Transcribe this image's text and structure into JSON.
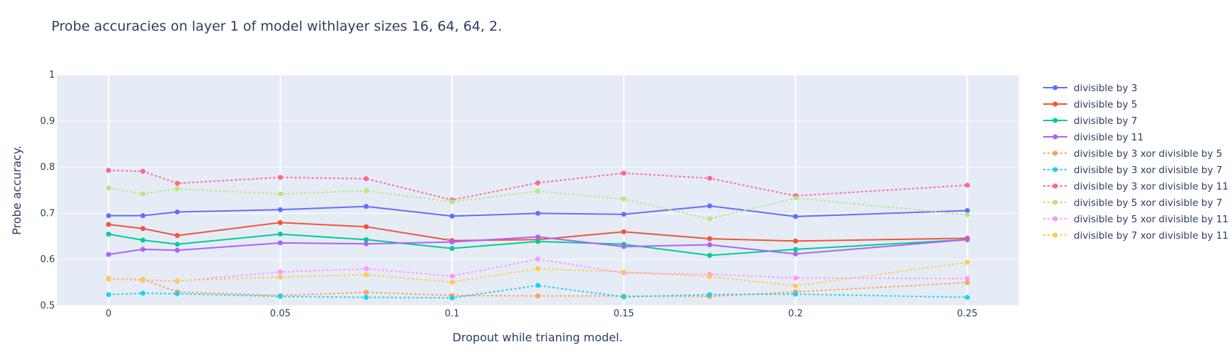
{
  "chart_data": {
    "type": "line",
    "title": "Probe accuracies on layer 1 of model withlayer sizes 16, 64, 64, 2.",
    "xlabel": "Dropout while trianing model.",
    "ylabel": "Probe accuracy.",
    "xlim": [
      -0.015,
      0.265
    ],
    "ylim": [
      0.5,
      1
    ],
    "x_ticks": [
      0,
      0.05,
      0.1,
      0.15,
      0.2,
      0.25
    ],
    "x_tick_labels": [
      "0",
      "0.05",
      "0.1",
      "0.15",
      "0.2",
      "0.25"
    ],
    "y_ticks": [
      0.5,
      0.6,
      0.7,
      0.8,
      0.9,
      1
    ],
    "y_tick_labels": [
      "0.5",
      "0.6",
      "0.7",
      "0.8",
      "0.9",
      "1"
    ],
    "grid": true,
    "legend_position": "right",
    "plot_bgcolor": "#e5ecf6",
    "x": [
      0,
      0.01,
      0.02,
      0.05,
      0.075,
      0.1,
      0.125,
      0.15,
      0.175,
      0.2,
      0.25
    ],
    "series": [
      {
        "name": "divisible by 3",
        "color": "#636efa",
        "dash": "solid",
        "values": [
          0.695,
          0.695,
          0.703,
          0.708,
          0.715,
          0.694,
          0.7,
          0.698,
          0.716,
          0.693,
          0.706
        ]
      },
      {
        "name": "divisible by 5",
        "color": "#ef553b",
        "dash": "solid",
        "values": [
          0.676,
          0.667,
          0.652,
          0.68,
          0.671,
          0.641,
          0.643,
          0.66,
          0.645,
          0.64,
          0.646
        ]
      },
      {
        "name": "divisible by 7",
        "color": "#00cc96",
        "dash": "solid",
        "values": [
          0.655,
          0.642,
          0.633,
          0.655,
          0.643,
          0.624,
          0.639,
          0.633,
          0.609,
          0.622,
          0.643
        ]
      },
      {
        "name": "divisible by 11",
        "color": "#ab63fa",
        "dash": "solid",
        "values": [
          0.611,
          0.622,
          0.62,
          0.636,
          0.634,
          0.638,
          0.649,
          0.628,
          0.632,
          0.612,
          0.643
        ]
      },
      {
        "name": "divisible by 3 xor divisible by 5",
        "color": "#ffa15a",
        "dash": "dot",
        "values": [
          0.558,
          0.557,
          0.53,
          0.522,
          0.529,
          0.522,
          0.521,
          0.521,
          0.52,
          0.53,
          0.55
        ]
      },
      {
        "name": "divisible by 3 xor divisible by 7",
        "color": "#19d3f3",
        "dash": "dot",
        "values": [
          0.524,
          0.527,
          0.526,
          0.52,
          0.518,
          0.517,
          0.544,
          0.519,
          0.524,
          0.525,
          0.518
        ]
      },
      {
        "name": "divisible by 3 xor divisible by 11",
        "color": "#ff6692",
        "dash": "dot",
        "values": [
          0.793,
          0.791,
          0.765,
          0.778,
          0.775,
          0.729,
          0.766,
          0.787,
          0.776,
          0.738,
          0.761
        ]
      },
      {
        "name": "divisible by 5 xor divisible by 7",
        "color": "#b6e880",
        "dash": "dot",
        "values": [
          0.755,
          0.742,
          0.753,
          0.742,
          0.749,
          0.725,
          0.748,
          0.731,
          0.688,
          0.733,
          0.697
        ]
      },
      {
        "name": "divisible by 5 xor divisible by 11",
        "color": "#ff97ff",
        "dash": "dot",
        "values": [
          0.559,
          0.555,
          0.553,
          0.573,
          0.58,
          0.564,
          0.601,
          0.571,
          0.568,
          0.56,
          0.559
        ]
      },
      {
        "name": "divisible by 7 xor divisible by 11",
        "color": "#fecb52",
        "dash": "dot",
        "values": [
          0.559,
          0.556,
          0.554,
          0.562,
          0.567,
          0.551,
          0.58,
          0.573,
          0.563,
          0.543,
          0.594
        ]
      }
    ]
  }
}
